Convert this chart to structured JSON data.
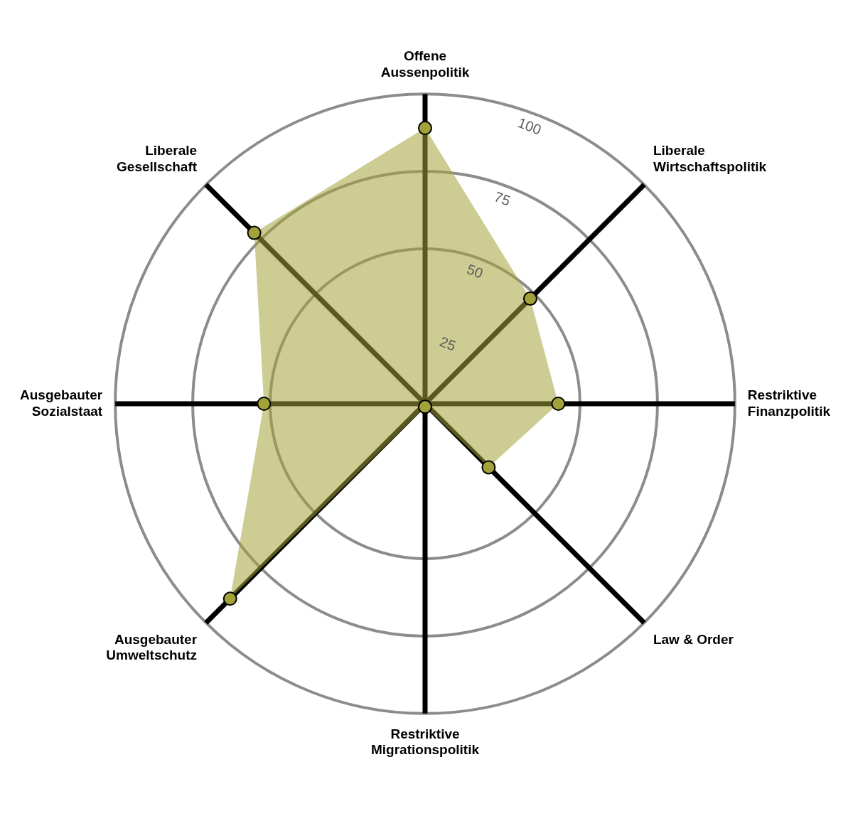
{
  "chart_data": {
    "type": "radar",
    "categories": [
      "Offene\nAussenpolitik",
      "Liberale\nWirtschaftspolitik",
      "Restriktive\nFinanzpolitik",
      "Law & Order",
      "Restriktive\nMigrationspolitik",
      "Ausgebauter\nUmweltschutz",
      "Ausgebauter\nSozialstaat",
      "Liberale\nGesellschaft"
    ],
    "series": [
      {
        "color": "#a3a23a",
        "values": [
          89,
          48,
          43,
          29,
          1,
          89,
          52,
          78
        ]
      }
    ],
    "ylim": [
      0,
      100
    ],
    "yticks": [
      25,
      50,
      75,
      100
    ],
    "grid": true,
    "marker": "circle",
    "legend": false
  }
}
